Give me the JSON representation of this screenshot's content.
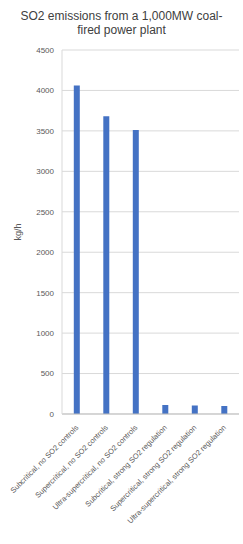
{
  "chart_data": {
    "type": "bar",
    "title": "SO2 emissions from a 1,000MW coal-fired power plant",
    "y_label": "kg/h",
    "categories": [
      "Subcritical, no SO2 controls",
      "Supercritical, no SO2 controls",
      "Ultra-supercritical, no SO2 controls",
      "Subcritical, strong SO2 regulation",
      "Supercritical, strong SO2 regulation",
      "Ultra-supercritical, strong SO2 regulation"
    ],
    "values": [
      4060,
      3680,
      3510,
      110,
      105,
      100
    ],
    "color": "#4472c4",
    "ylim": [
      0,
      4500
    ],
    "yticks": [
      0,
      500,
      1000,
      1500,
      2000,
      2500,
      3000,
      3500,
      4000,
      4500
    ],
    "grid": true
  }
}
